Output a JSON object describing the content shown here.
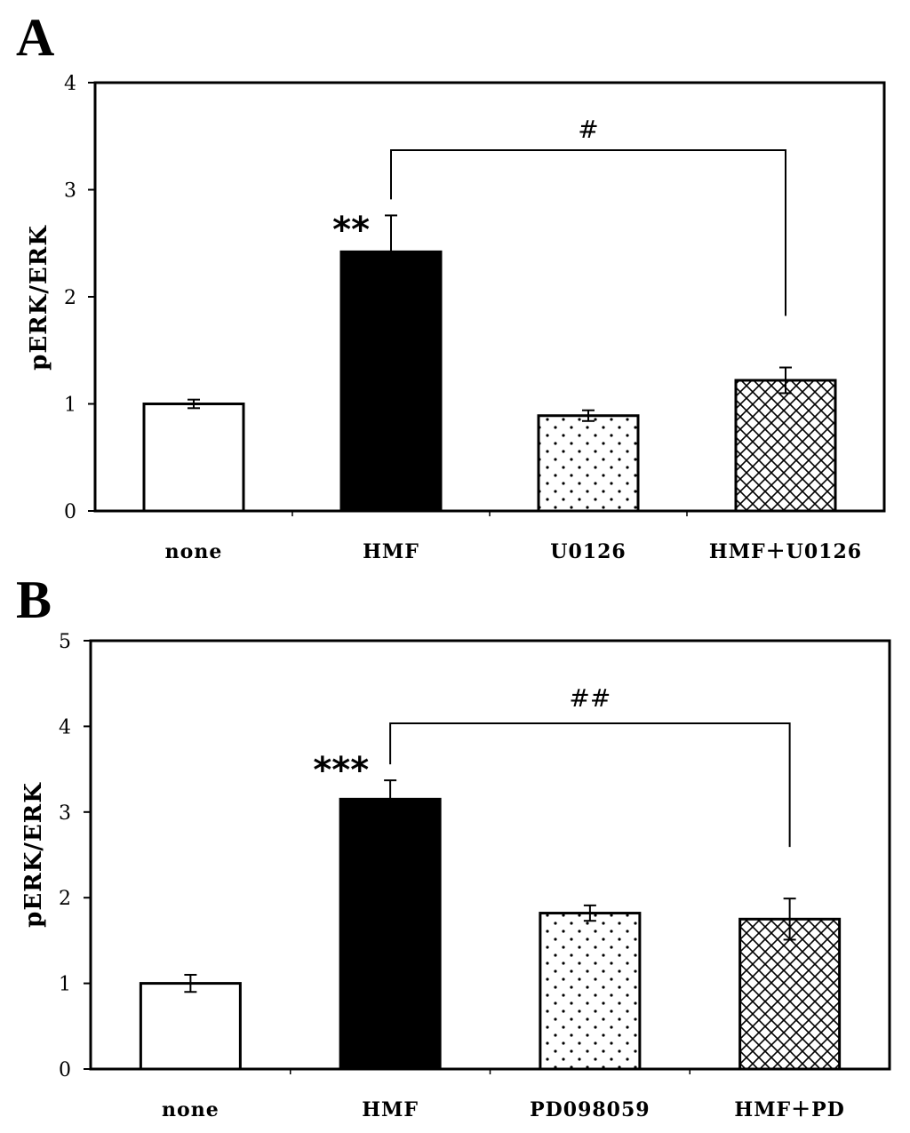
{
  "chart_data": [
    {
      "panel": "A",
      "type": "bar",
      "ylabel": "pERK/ERK",
      "xlabel": "",
      "ylim": [
        0,
        4
      ],
      "yticks": [
        "0",
        "1",
        "2",
        "3",
        "4"
      ],
      "categories": [
        "none",
        "HMF",
        "U0126",
        "HMF＋U0126"
      ],
      "values": [
        1.0,
        2.42,
        0.89,
        1.22
      ],
      "errors": [
        0.04,
        0.34,
        0.05,
        0.12
      ],
      "fills": [
        "white",
        "black",
        "dots",
        "crosshatch"
      ],
      "annotations": {
        "stars": "**",
        "stars_category": "HMF",
        "bracket_label": "#",
        "bracket_from": "HMF",
        "bracket_to": "HMF＋U0126"
      },
      "grid": false
    },
    {
      "panel": "B",
      "type": "bar",
      "ylabel": "pERK/ERK",
      "xlabel": "",
      "ylim": [
        0,
        5
      ],
      "yticks": [
        "0",
        "1",
        "2",
        "3",
        "4",
        "5"
      ],
      "categories": [
        "none",
        "HMF",
        "PD098059",
        "HMF＋PD"
      ],
      "values": [
        1.0,
        3.15,
        1.82,
        1.75
      ],
      "errors": [
        0.1,
        0.22,
        0.09,
        0.24
      ],
      "fills": [
        "white",
        "black",
        "dots",
        "crosshatch"
      ],
      "annotations": {
        "stars": "***",
        "stars_category": "HMF",
        "bracket_label": "##",
        "bracket_from": "HMF",
        "bracket_to": "HMF＋PD"
      },
      "grid": false
    }
  ]
}
